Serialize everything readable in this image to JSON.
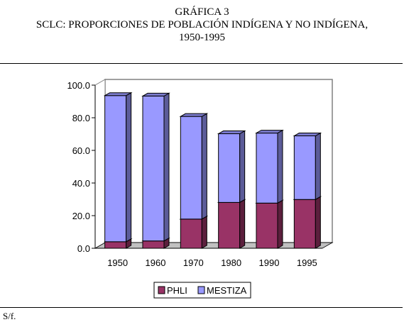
{
  "header": {
    "line1": "GRÁFICA 3",
    "line2": "SCLC: PROPORCIONES DE POBLACIÓN INDÍGENA Y NO INDÍGENA,",
    "line3": "1950-1995"
  },
  "footer": {
    "source": "S/f."
  },
  "colors": {
    "phli": "#993366",
    "mestiza": "#9999ff",
    "floor": "#c0c0c0",
    "wall": "#808080"
  },
  "chart_data": {
    "type": "bar",
    "stacked": true,
    "categories": [
      "1950",
      "1960",
      "1970",
      "1980",
      "1990",
      "1995"
    ],
    "series": [
      {
        "name": "PHLI",
        "values": [
          4.0,
          4.5,
          17.9,
          28.1,
          27.7,
          29.9
        ]
      },
      {
        "name": "MESTIZA",
        "values": [
          89.6,
          88.8,
          62.9,
          42.1,
          42.9,
          39.0
        ]
      }
    ],
    "ylim": [
      0,
      100
    ],
    "yticks": [
      "0.0",
      "20.0",
      "40.0",
      "60.0",
      "80.0",
      "100.0"
    ],
    "legend_position": "bottom",
    "grid": false
  }
}
